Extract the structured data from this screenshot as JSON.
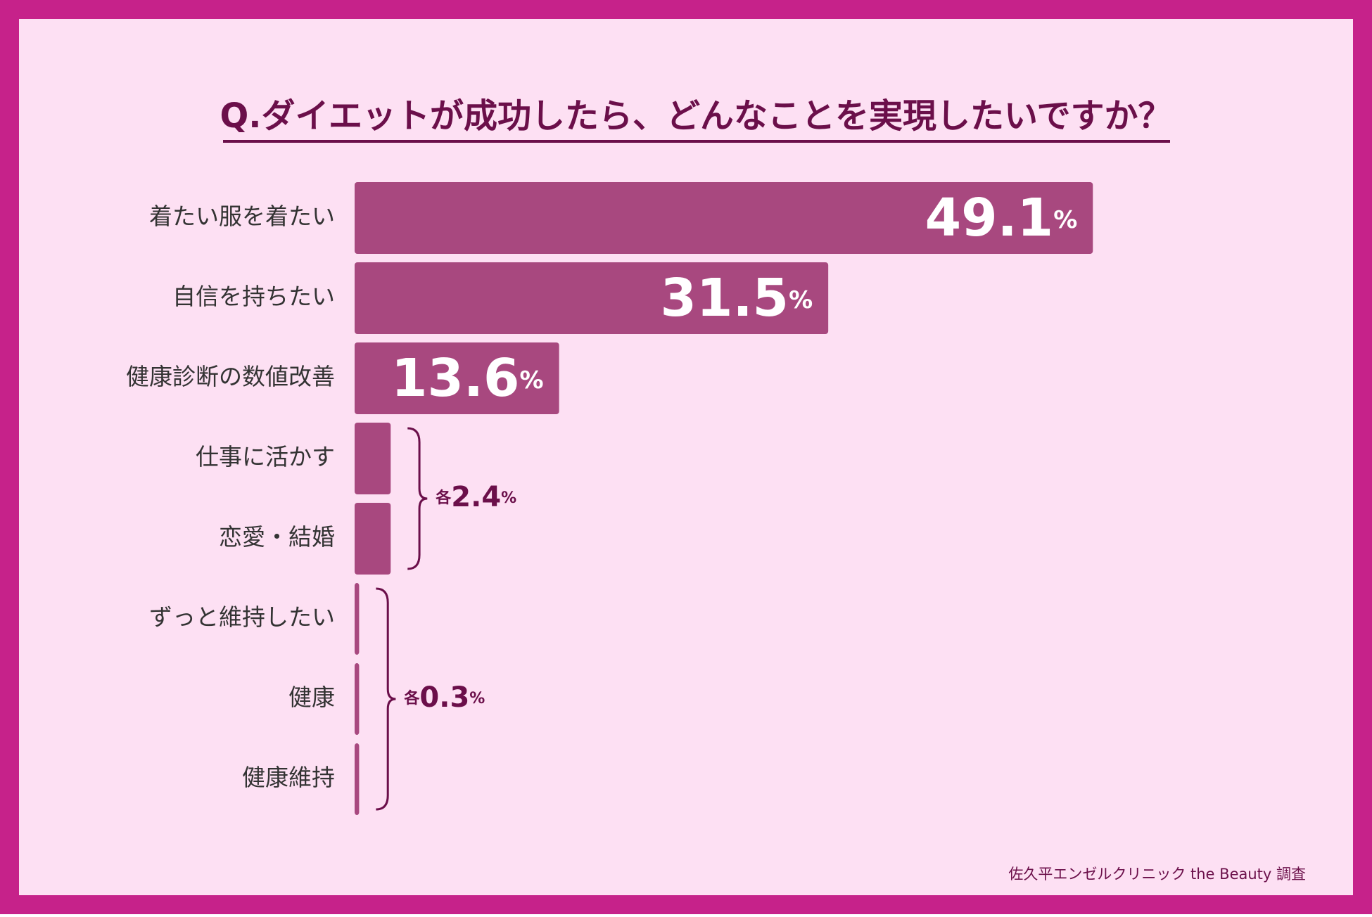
{
  "chart_data": {
    "type": "bar",
    "orientation": "horizontal",
    "title": "Q.ダイエットが成功したら、どんなことを実現したいですか？",
    "categories": [
      "着たい服を着たい",
      "自信を持ちたい",
      "健康診断の数値改善",
      "仕事に活かす",
      "恋愛・結婚",
      "ずっと維持したい",
      "健康",
      "健康維持"
    ],
    "values": [
      49.1,
      31.5,
      13.6,
      2.4,
      2.4,
      0.3,
      0.3,
      0.3
    ],
    "value_labels": [
      "49.1%",
      "31.5%",
      "13.6%",
      null,
      null,
      null,
      null,
      null
    ],
    "brackets": [
      {
        "label": "各2.4%",
        "value": 2.4
      },
      {
        "label": "各0.3%",
        "value": 0.3
      }
    ],
    "color": "#a8487f",
    "source": "佐久平エンゼルクリニック the Beauty 調査"
  }
}
